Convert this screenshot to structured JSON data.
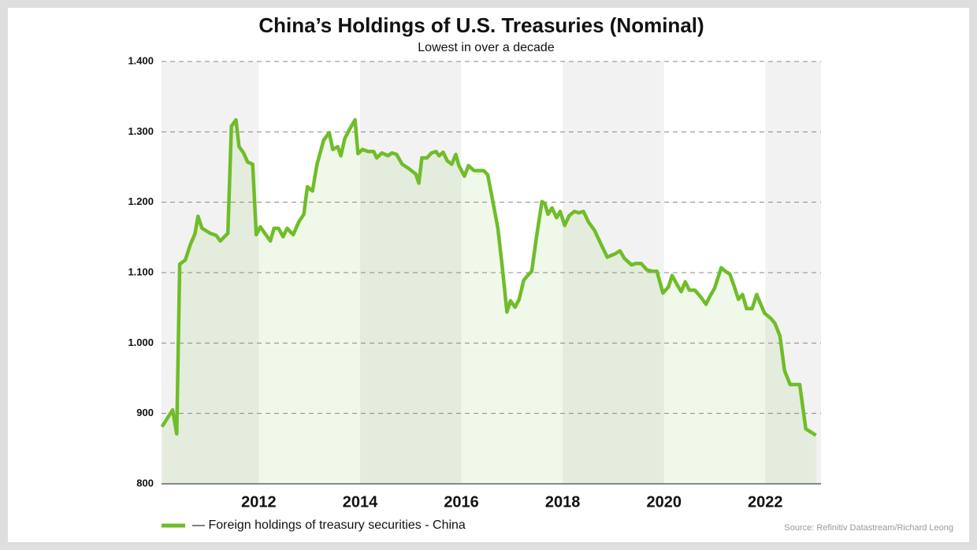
{
  "chart_data": {
    "type": "line",
    "title": "China’s Holdings of U.S. Treasuries (Nominal)",
    "subtitle": "Lowest in over a decade",
    "source": "Source: Refinitiv Datastream/Richard Leong",
    "xlim": [
      2010.08,
      2023.1
    ],
    "xticks": [
      2012,
      2014,
      2016,
      2018,
      2020,
      2022
    ],
    "ylim": [
      800,
      1400
    ],
    "yticks": [
      {
        "value": 1400,
        "label": "1.400"
      },
      {
        "value": 1300,
        "label": "1.300"
      },
      {
        "value": 1200,
        "label": "1.200"
      },
      {
        "value": 1100,
        "label": "1.100"
      },
      {
        "value": 1000,
        "label": "1.000"
      },
      900,
      800
    ],
    "grid": true,
    "legend": "bottom-left",
    "x": [
      2010.09,
      2010.3,
      2010.38,
      2010.44,
      2010.55,
      2010.65,
      2010.74,
      2010.8,
      2010.88,
      2011.04,
      2011.16,
      2011.24,
      2011.39,
      2011.46,
      2011.55,
      2011.61,
      2011.7,
      2011.78,
      2011.88,
      2011.95,
      2012.03,
      2012.14,
      2012.23,
      2012.3,
      2012.39,
      2012.48,
      2012.56,
      2012.68,
      2012.79,
      2012.89,
      2012.96,
      2013.06,
      2013.15,
      2013.28,
      2013.39,
      2013.46,
      2013.56,
      2013.62,
      2013.7,
      2013.81,
      2013.9,
      2013.96,
      2014.05,
      2014.16,
      2014.27,
      2014.33,
      2014.43,
      2014.55,
      2014.63,
      2014.72,
      2014.83,
      2014.96,
      2015.1,
      2015.16,
      2015.22,
      2015.32,
      2015.41,
      2015.5,
      2015.56,
      2015.64,
      2015.72,
      2015.81,
      2015.89,
      2015.95,
      2016.06,
      2016.14,
      2016.25,
      2016.36,
      2016.44,
      2016.52,
      2016.62,
      2016.72,
      2016.81,
      2016.9,
      2016.97,
      2017.06,
      2017.14,
      2017.23,
      2017.31,
      2017.39,
      2017.48,
      2017.59,
      2017.65,
      2017.71,
      2017.79,
      2017.88,
      2017.95,
      2018.04,
      2018.13,
      2018.23,
      2018.32,
      2018.41,
      2018.51,
      2018.63,
      2018.74,
      2018.88,
      2019.04,
      2019.13,
      2019.22,
      2019.36,
      2019.44,
      2019.55,
      2019.66,
      2019.77,
      2019.86,
      2019.98,
      2020.09,
      2020.16,
      2020.25,
      2020.34,
      2020.42,
      2020.5,
      2020.61,
      2020.72,
      2020.83,
      2020.89,
      2021.0,
      2021.13,
      2021.21,
      2021.3,
      2021.38,
      2021.47,
      2021.55,
      2021.63,
      2021.74,
      2021.83,
      2021.91,
      2021.99,
      2022.11,
      2022.19,
      2022.29,
      2022.38,
      2022.49,
      2022.68,
      2022.8,
      2023.0
    ],
    "series": [
      {
        "name": "— Foreign holdings of treasury securities - China",
        "color": "#6fbd2a",
        "values": [
          881,
          905,
          871,
          1112,
          1118,
          1140,
          1155,
          1180,
          1163,
          1156,
          1153,
          1145,
          1156,
          1308,
          1317,
          1279,
          1270,
          1257,
          1254,
          1154,
          1165,
          1154,
          1145,
          1163,
          1163,
          1151,
          1163,
          1154,
          1172,
          1183,
          1222,
          1216,
          1254,
          1288,
          1299,
          1275,
          1279,
          1266,
          1291,
          1306,
          1317,
          1269,
          1275,
          1272,
          1272,
          1263,
          1270,
          1266,
          1270,
          1268,
          1254,
          1248,
          1240,
          1227,
          1263,
          1263,
          1270,
          1272,
          1266,
          1271,
          1259,
          1254,
          1268,
          1252,
          1237,
          1252,
          1245,
          1245,
          1245,
          1239,
          1202,
          1163,
          1107,
          1044,
          1060,
          1051,
          1062,
          1089,
          1096,
          1102,
          1149,
          1201,
          1198,
          1183,
          1192,
          1178,
          1187,
          1167,
          1181,
          1187,
          1185,
          1187,
          1172,
          1160,
          1143,
          1122,
          1127,
          1131,
          1120,
          1111,
          1113,
          1113,
          1104,
          1102,
          1102,
          1071,
          1080,
          1096,
          1084,
          1073,
          1087,
          1075,
          1075,
          1066,
          1055,
          1064,
          1078,
          1107,
          1102,
          1098,
          1082,
          1062,
          1069,
          1049,
          1049,
          1069,
          1055,
          1042,
          1035,
          1028,
          1010,
          961,
          941,
          941,
          878,
          869
        ]
      }
    ]
  }
}
